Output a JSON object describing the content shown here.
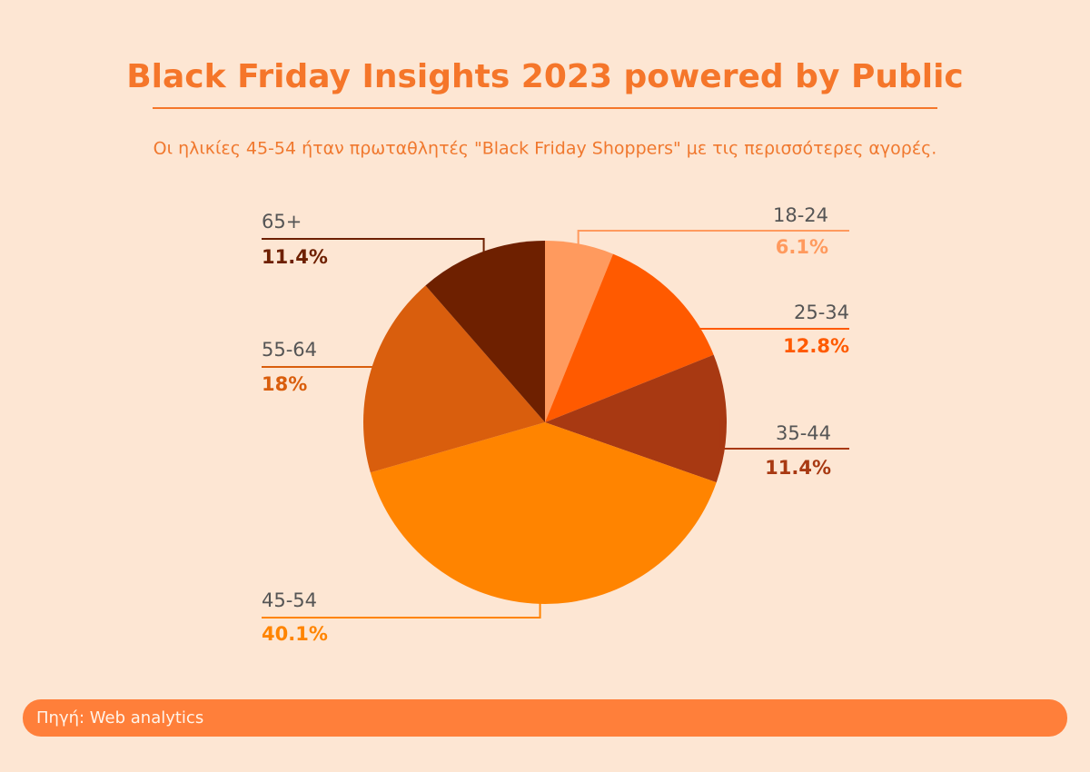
{
  "chart_data": {
    "type": "pie",
    "title": "Black Friday Insights 2023 powered by Public",
    "subtitle": "Οι ηλικίες 45-54 ήταν πρωταθλητές \"Black Friday Shoppers\" με τις περισσότερες αγορές.",
    "source": "Πηγή: Web analytics",
    "categories": [
      "18-24",
      "25-34",
      "35-44",
      "45-54",
      "55-64",
      "65+"
    ],
    "values": [
      6.1,
      12.8,
      11.4,
      40.1,
      18,
      11.4
    ],
    "value_labels": [
      "6.1%",
      "12.8%",
      "11.4%",
      "40.1%",
      "18%",
      "11.4%"
    ],
    "colors": [
      "#ff9a5e",
      "#ff5a00",
      "#a83912",
      "#ff8400",
      "#d95e0d",
      "#6e2000"
    ]
  }
}
